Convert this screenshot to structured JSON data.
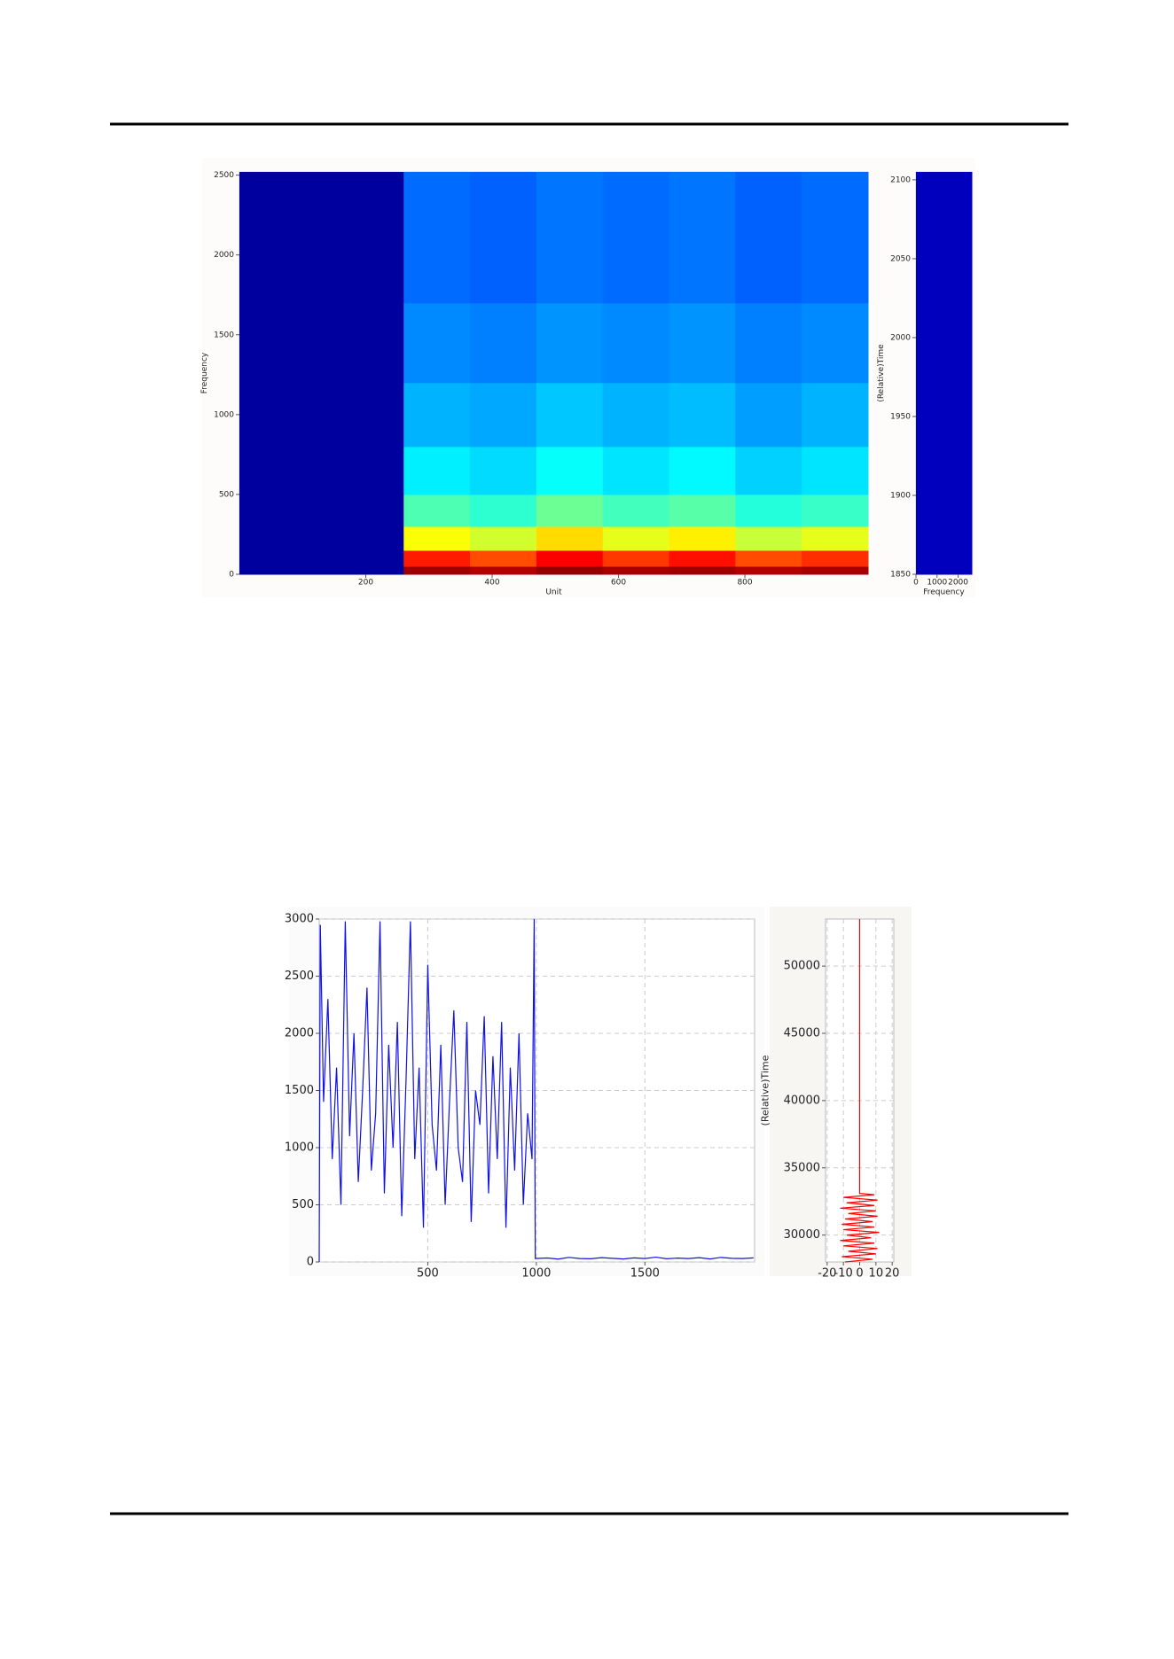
{
  "chart_data": [
    {
      "type": "heatmap",
      "x_label": "Unit",
      "y_label": "Frequency",
      "colormap": "jet",
      "zlim": [
        0,
        1
      ],
      "x_edges": [
        0,
        100,
        200,
        260,
        365,
        470,
        575,
        680,
        785,
        890,
        995
      ],
      "y_edges": [
        0,
        50,
        150,
        300,
        500,
        800,
        1200,
        1700,
        2520
      ],
      "values": [
        [
          0.03,
          0.03,
          0.03,
          0.97,
          0.95,
          0.98,
          0.96,
          0.97,
          0.95,
          0.96
        ],
        [
          0.03,
          0.03,
          0.03,
          0.85,
          0.8,
          0.88,
          0.82,
          0.86,
          0.8,
          0.83
        ],
        [
          0.03,
          0.03,
          0.03,
          0.62,
          0.58,
          0.66,
          0.6,
          0.64,
          0.57,
          0.6
        ],
        [
          0.03,
          0.03,
          0.03,
          0.45,
          0.42,
          0.48,
          0.44,
          0.46,
          0.41,
          0.43
        ],
        [
          0.03,
          0.03,
          0.03,
          0.36,
          0.34,
          0.38,
          0.35,
          0.37,
          0.33,
          0.35
        ],
        [
          0.03,
          0.03,
          0.03,
          0.3,
          0.29,
          0.32,
          0.3,
          0.31,
          0.28,
          0.3
        ],
        [
          0.03,
          0.03,
          0.03,
          0.26,
          0.25,
          0.27,
          0.26,
          0.27,
          0.25,
          0.26
        ],
        [
          0.03,
          0.03,
          0.03,
          0.23,
          0.22,
          0.24,
          0.23,
          0.24,
          0.22,
          0.23
        ]
      ],
      "xlim": [
        0,
        995
      ],
      "ylim": [
        0,
        2520
      ],
      "xticks": [
        200,
        400,
        600,
        800
      ],
      "yticks": [
        0,
        500,
        1000,
        1500,
        2000,
        2500
      ]
    },
    {
      "type": "heatmap",
      "x_label": "Frequency",
      "y_label": "(Relative)Time",
      "colormap": "jet",
      "zlim": [
        0,
        1
      ],
      "x_edges": [
        0,
        2650
      ],
      "y_edges": [
        1850,
        2105
      ],
      "values": [
        [
          0.06
        ]
      ],
      "xlim": [
        0,
        2650
      ],
      "ylim": [
        1850,
        2105
      ],
      "xticks": [
        0,
        1000,
        2000
      ],
      "yticks": [
        1850,
        1900,
        1950,
        2000,
        2050,
        2100
      ]
    },
    {
      "type": "line",
      "color": "#1010e8",
      "grid": true,
      "x": [
        0,
        5,
        20,
        40,
        60,
        80,
        100,
        120,
        140,
        160,
        180,
        200,
        220,
        240,
        260,
        280,
        300,
        320,
        340,
        360,
        380,
        400,
        420,
        440,
        460,
        480,
        500,
        520,
        540,
        560,
        580,
        600,
        620,
        640,
        660,
        680,
        700,
        720,
        740,
        760,
        780,
        800,
        820,
        840,
        860,
        880,
        900,
        920,
        940,
        960,
        980,
        990,
        995,
        1050,
        1100,
        1150,
        1200,
        1250,
        1300,
        1350,
        1400,
        1450,
        1500,
        1550,
        1600,
        1650,
        1700,
        1750,
        1800,
        1850,
        1900,
        1950,
        2000
      ],
      "values": [
        0,
        2950,
        1400,
        2300,
        900,
        1700,
        500,
        2980,
        1100,
        2000,
        700,
        1500,
        2400,
        800,
        1300,
        2980,
        600,
        1900,
        1000,
        2100,
        400,
        1600,
        2980,
        900,
        1700,
        300,
        2600,
        1200,
        800,
        1900,
        500,
        1400,
        2200,
        1000,
        700,
        2100,
        350,
        1500,
        1200,
        2150,
        600,
        1800,
        900,
        2100,
        300,
        1700,
        800,
        2000,
        500,
        1300,
        900,
        3000,
        30,
        35,
        25,
        40,
        30,
        28,
        38,
        32,
        26,
        36,
        30,
        42,
        28,
        34,
        30,
        38,
        26,
        40,
        32,
        30,
        36
      ],
      "xlim": [
        0,
        2005
      ],
      "ylim": [
        0,
        3000
      ],
      "xticks": [
        500,
        1000,
        1500
      ],
      "yticks": [
        0,
        500,
        1000,
        1500,
        2000,
        2500,
        3000
      ]
    },
    {
      "type": "line",
      "value_axis": "x",
      "color": "#ff0000",
      "grid": true,
      "y_label": "(Relative)Time",
      "y": [
        28000,
        28200,
        28400,
        28600,
        28800,
        29000,
        29200,
        29400,
        29600,
        29800,
        30000,
        30200,
        30400,
        30600,
        30800,
        31000,
        31200,
        31400,
        31600,
        31800,
        32000,
        32200,
        32400,
        32600,
        32800,
        33000,
        33100,
        53500
      ],
      "values": [
        -9,
        8,
        -11,
        10,
        -7,
        11,
        -10,
        9,
        -12,
        7,
        -8,
        12,
        -10,
        9,
        -11,
        8,
        -9,
        11,
        -7,
        10,
        -12,
        9,
        -8,
        11,
        -10,
        9,
        0,
        0
      ],
      "xlim": [
        -21,
        21
      ],
      "ylim": [
        28000,
        53500
      ],
      "xticks": [
        -20,
        -10,
        0,
        10,
        20
      ],
      "yticks": [
        30000,
        35000,
        40000,
        45000,
        50000
      ]
    }
  ]
}
